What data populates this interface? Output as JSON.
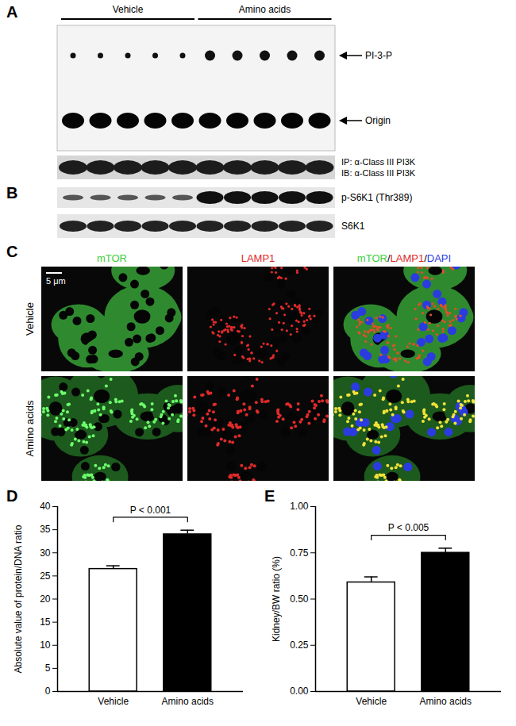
{
  "panels": {
    "A": {
      "panel": "A",
      "groups": [
        "Vehicle",
        "Amino acids"
      ],
      "bands": [
        "PI-3-P",
        "Origin"
      ],
      "lower_blot": [
        "IP: α-Class III PI3K",
        "IB: α-Class III PI3K"
      ]
    },
    "B": {
      "panel": "B",
      "bands": [
        "p-S6K1 (Thr389)",
        "S6K1"
      ]
    },
    "C": {
      "panel": "C",
      "columns": [
        {
          "text": "mTOR",
          "color": "#3ccf3c"
        },
        {
          "text": "LAMP1",
          "color": "#e02a2a"
        }
      ],
      "merge": [
        {
          "text": "mTOR",
          "color": "#3ccf3c"
        },
        {
          "text": "/",
          "color": "#000000"
        },
        {
          "text": "LAMP1",
          "color": "#e02a2a"
        },
        {
          "text": "/",
          "color": "#000000"
        },
        {
          "text": "DAPI",
          "color": "#2a3ce0"
        }
      ],
      "rows": [
        "Vehicle",
        "Amino acids"
      ],
      "scale_bar": "5 μm"
    }
  },
  "chart_data": [
    {
      "panel": "D",
      "type": "bar",
      "ylabel": "Absolute value of protein/DNA ratio",
      "categories": [
        "Vehicle",
        "Amino acids"
      ],
      "values": [
        26.5,
        34
      ],
      "errors": [
        0.7,
        0.9
      ],
      "colors": [
        "#ffffff",
        "#000000"
      ],
      "ylim": [
        0,
        40
      ],
      "yticks": [
        0,
        5,
        10,
        15,
        20,
        25,
        30,
        35,
        40
      ],
      "annotation": "P < 0.001"
    },
    {
      "panel": "E",
      "type": "bar",
      "ylabel": "Kidney/BW ratio (%)",
      "categories": [
        "Vehicle",
        "Amino acids"
      ],
      "values": [
        0.59,
        0.75
      ],
      "errors": [
        0.03,
        0.025
      ],
      "colors": [
        "#ffffff",
        "#000000"
      ],
      "ylim": [
        0,
        1
      ],
      "yticks": [
        {
          "value": 0,
          "label": "0.00"
        },
        0.25,
        {
          "value": 0.5,
          "label": "0.50"
        },
        0.75,
        {
          "value": 1,
          "label": "1.00"
        }
      ],
      "annotation": "P < 0.005"
    }
  ]
}
